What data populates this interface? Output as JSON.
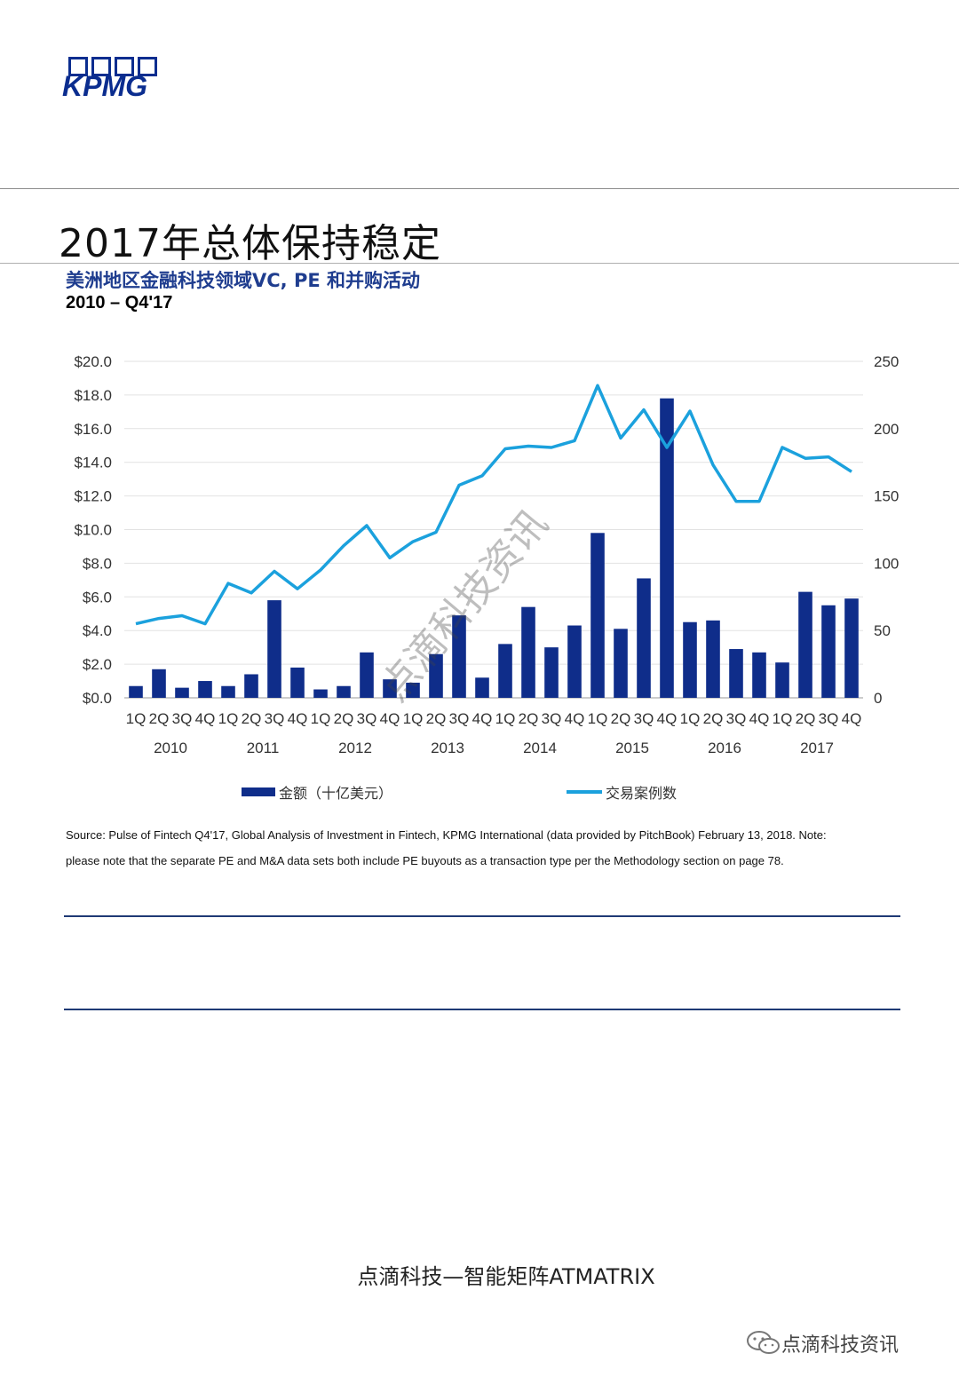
{
  "header": {
    "logo_text": "KPMG",
    "page_title": "2017年总体保持稳定"
  },
  "chart_header": {
    "title": "美洲地区金融科技领域VC, PE 和并购活动",
    "subtitle": "2010 – Q4'17"
  },
  "chart_data": {
    "type": "bar",
    "title": "美洲地区金融科技领域VC, PE 和并购活动",
    "subtitle": "2010 – Q4'17",
    "quarter_labels": [
      "1Q",
      "2Q",
      "3Q",
      "4Q",
      "1Q",
      "2Q",
      "3Q",
      "4Q",
      "1Q",
      "2Q",
      "3Q",
      "4Q",
      "1Q",
      "2Q",
      "3Q",
      "4Q",
      "1Q",
      "2Q",
      "3Q",
      "4Q",
      "1Q",
      "2Q",
      "3Q",
      "4Q",
      "1Q",
      "2Q",
      "3Q",
      "4Q",
      "1Q",
      "2Q",
      "3Q",
      "4Q"
    ],
    "years": [
      "2010",
      "2011",
      "2012",
      "2013",
      "2014",
      "2015",
      "2016",
      "2017"
    ],
    "left_axis": {
      "min": 0,
      "max": 20,
      "ticks": [
        "$20.0",
        "$18.0",
        "$16.0",
        "$14.0",
        "$12.0",
        "$10.0",
        "$8.0",
        "$6.0",
        "$4.0",
        "$2.0",
        "$0.0"
      ]
    },
    "right_axis": {
      "min": 0,
      "max": 250,
      "ticks": [
        "250",
        "200",
        "150",
        "100",
        "50",
        "0"
      ]
    },
    "grid": true,
    "series": [
      {
        "name": "金额（十亿美元）",
        "type": "bar",
        "axis": "left",
        "color": "#0f2d8a",
        "values": [
          0.7,
          1.7,
          0.6,
          1.0,
          0.7,
          1.4,
          5.8,
          1.8,
          0.5,
          0.7,
          2.7,
          1.1,
          0.9,
          2.6,
          4.9,
          1.2,
          3.2,
          5.4,
          3.0,
          4.3,
          9.8,
          4.1,
          7.1,
          17.8,
          4.5,
          4.6,
          2.9,
          2.7,
          2.1,
          6.3,
          5.5,
          5.9
        ]
      },
      {
        "name": "交易案例数",
        "type": "line",
        "axis": "right",
        "color": "#1ba1dd",
        "values": [
          55,
          59,
          61,
          55,
          85,
          78,
          94,
          81,
          95,
          113,
          128,
          104,
          116,
          123,
          158,
          165,
          185,
          187,
          186,
          191,
          232,
          193,
          214,
          186,
          213,
          173,
          146,
          146,
          186,
          178,
          179,
          168
        ]
      }
    ]
  },
  "legend": {
    "bar_label": "金额（十亿美元）",
    "line_label": "交易案例数"
  },
  "source": {
    "line1": "Source: Pulse of Fintech Q4'17, Global Analysis of Investment in Fintech, KPMG International (data provided by PitchBook) February 13, 2018. Note:",
    "line2": "please note that the separate PE and M&A data sets both include PE buyouts as a transaction type per the Methodology section on page 78."
  },
  "watermark": {
    "text": "点滴科技资讯"
  },
  "footer": {
    "text": "点滴科技—智能矩阵ATMATRIX"
  },
  "wechat": {
    "account": "点滴科技资讯"
  },
  "colors": {
    "brand_blue": "#0f2d8a",
    "line_blue": "#1ba1dd",
    "rule_blue": "#1f3a75"
  }
}
